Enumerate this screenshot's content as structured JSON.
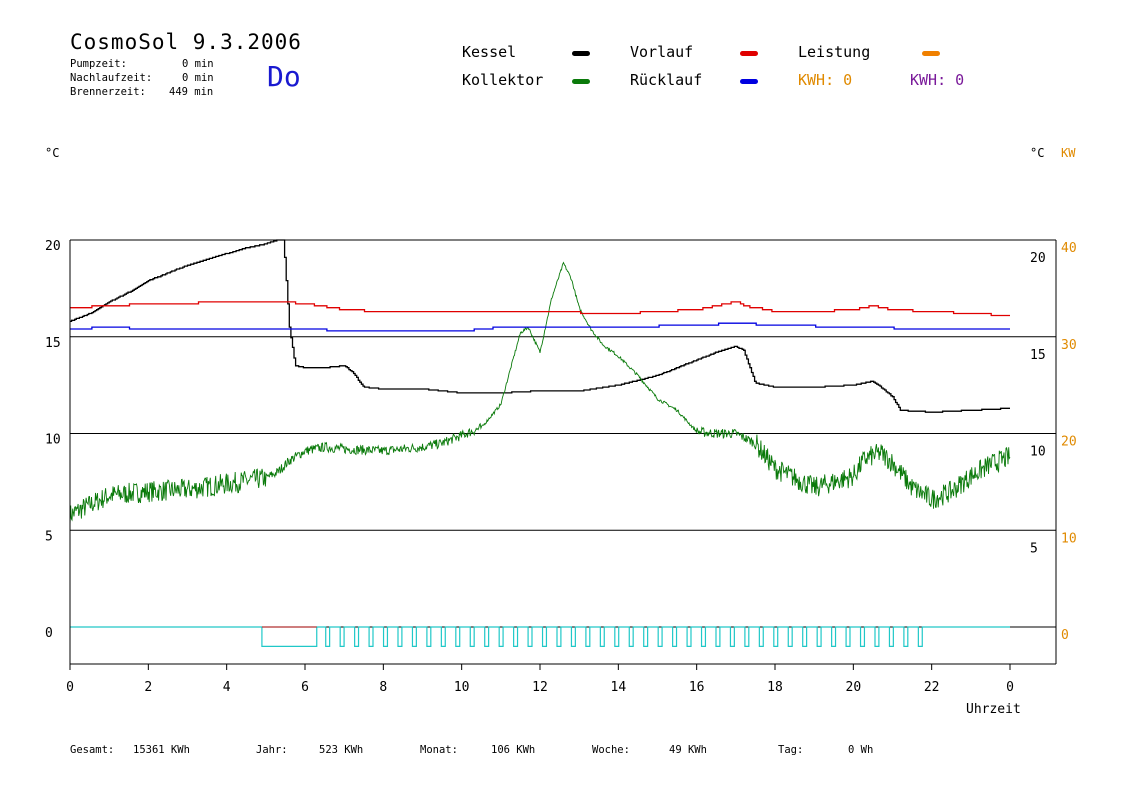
{
  "header": {
    "title": "CosmoSol 9.3.2006",
    "day": "Do",
    "pumpzeit_label": "Pumpzeit:",
    "pumpzeit_value": "0 min",
    "nachlaufzeit_label": "Nachlaufzeit:",
    "nachlaufzeit_value": "0 min",
    "brennerzeit_label": "Brennerzeit:",
    "brennerzeit_value": "449 min"
  },
  "legend": {
    "kessel": "Kessel",
    "kollektor": "Kollektor",
    "vorlauf": "Vorlauf",
    "ruecklauf": "Rücklauf",
    "leistung": "Leistung",
    "kwh_orange": "KWH: 0",
    "kwh_purple": "KWH: 0"
  },
  "colors": {
    "kessel": "#000000",
    "kollektor": "#0a7a0a",
    "vorlauf": "#e00000",
    "ruecklauf": "#0000e0",
    "leistung": "#f08000",
    "kwh_orange": "#e08a00",
    "kwh_purple": "#7a1a9a",
    "burner": "#20c8c8",
    "burner_on": "#b03030"
  },
  "axes": {
    "left_unit": "°C",
    "right_unit": "°C",
    "right_unit_kw": "KW",
    "x_label": "Uhrzeit"
  },
  "footer": {
    "gesamt_label": "Gesamt:",
    "gesamt_value": "15361 KWh",
    "jahr_label": "Jahr:",
    "jahr_value": "523 KWh",
    "monat_label": "Monat:",
    "monat_value": "106 KWh",
    "woche_label": "Woche:",
    "woche_value": "49 KWh",
    "tag_label": "Tag:",
    "tag_value": "0 Wh"
  },
  "chart_data": {
    "type": "line",
    "x_ticks": [
      "0",
      "2",
      "4",
      "6",
      "8",
      "10",
      "12",
      "14",
      "16",
      "18",
      "20",
      "22",
      "0"
    ],
    "xlim": [
      0,
      24
    ],
    "ylim": [
      -1.5,
      22
    ],
    "grid_y": [
      0,
      5,
      10,
      15,
      20
    ],
    "left_ticks": [
      "0",
      "5",
      "10",
      "15",
      "20"
    ],
    "right_inner_ticks": [
      "5",
      "10",
      "15",
      "20"
    ],
    "right_kw_ticks": [
      "0",
      "10",
      "20",
      "30",
      "40"
    ],
    "series": [
      {
        "name": "Kessel",
        "key": "kessel",
        "x": [
          0,
          0.5,
          1,
          1.5,
          2,
          2.5,
          3,
          3.5,
          4,
          4.5,
          5,
          5.3,
          5.45,
          5.5,
          5.6,
          5.75,
          6,
          6.5,
          7,
          7.2,
          7.5,
          8,
          9,
          9.5,
          10,
          11,
          12,
          13,
          14,
          15,
          16,
          16.5,
          17,
          17.2,
          17.5,
          18,
          19,
          20,
          20.5,
          20.7,
          21,
          21.2,
          22,
          23,
          24
        ],
        "values": [
          15.8,
          16.2,
          16.8,
          17.3,
          17.9,
          18.3,
          18.7,
          19.0,
          19.3,
          19.6,
          19.8,
          20.0,
          20.0,
          18.5,
          15.5,
          13.5,
          13.4,
          13.4,
          13.5,
          13.2,
          12.4,
          12.3,
          12.3,
          12.2,
          12.1,
          12.1,
          12.2,
          12.2,
          12.5,
          13.0,
          13.8,
          14.2,
          14.5,
          14.3,
          12.6,
          12.4,
          12.4,
          12.5,
          12.7,
          12.4,
          11.9,
          11.2,
          11.1,
          11.2,
          11.3
        ]
      },
      {
        "name": "Kollektor",
        "key": "kollektor",
        "x": [
          0,
          0.5,
          1,
          2,
          3,
          4,
          5,
          5.3,
          5.6,
          6,
          6.5,
          7,
          8,
          9,
          9.5,
          10,
          10.5,
          11,
          11.2,
          11.5,
          11.7,
          12,
          12.3,
          12.6,
          12.8,
          13,
          13.3,
          13.6,
          14,
          14.5,
          15,
          15.5,
          16,
          16.5,
          17,
          17.5,
          18,
          19,
          20,
          20.3,
          20.7,
          21,
          21.5,
          22,
          22.5,
          23,
          23.5,
          24
        ],
        "values": [
          5.8,
          6.3,
          6.8,
          7.0,
          7.1,
          7.4,
          7.7,
          8.0,
          8.6,
          9.1,
          9.3,
          9.2,
          9.1,
          9.3,
          9.5,
          9.9,
          10.3,
          11.5,
          13.0,
          15.2,
          15.5,
          14.2,
          17.0,
          18.8,
          18.0,
          16.5,
          15.4,
          14.6,
          14.0,
          13.0,
          11.8,
          11.2,
          10.1,
          10.0,
          10.0,
          9.5,
          8.2,
          7.2,
          7.8,
          8.7,
          9.0,
          8.5,
          7.2,
          6.6,
          7.0,
          7.8,
          8.4,
          8.8
        ]
      },
      {
        "name": "Vorlauf",
        "key": "vorlauf",
        "x": [
          0,
          1,
          2,
          3,
          3.5,
          4,
          5,
          5.5,
          6,
          7,
          8,
          10,
          12,
          14,
          16,
          16.5,
          17,
          17.2,
          18,
          19,
          20,
          20.5,
          21,
          22,
          23,
          24
        ],
        "values": [
          16.5,
          16.6,
          16.7,
          16.7,
          16.8,
          16.8,
          16.8,
          16.8,
          16.7,
          16.4,
          16.3,
          16.3,
          16.3,
          16.2,
          16.4,
          16.6,
          16.8,
          16.6,
          16.3,
          16.3,
          16.4,
          16.6,
          16.4,
          16.3,
          16.2,
          16.1
        ]
      },
      {
        "name": "Rücklauf",
        "key": "ruecklauf",
        "x": [
          0,
          1,
          2,
          4,
          5,
          6,
          7,
          8,
          10,
          11,
          12,
          14,
          16,
          17,
          18,
          20,
          22,
          24
        ],
        "values": [
          15.4,
          15.5,
          15.4,
          15.4,
          15.4,
          15.4,
          15.3,
          15.3,
          15.3,
          15.5,
          15.5,
          15.5,
          15.6,
          15.7,
          15.6,
          15.5,
          15.4,
          15.4
        ]
      }
    ],
    "burner": {
      "key": "burner",
      "full_on_interval": [
        4.9,
        6.3
      ],
      "cycles_start": 6.4,
      "cycles_end": 21.9,
      "cycle_count": 42,
      "level": 0,
      "low_level": -1
    }
  }
}
